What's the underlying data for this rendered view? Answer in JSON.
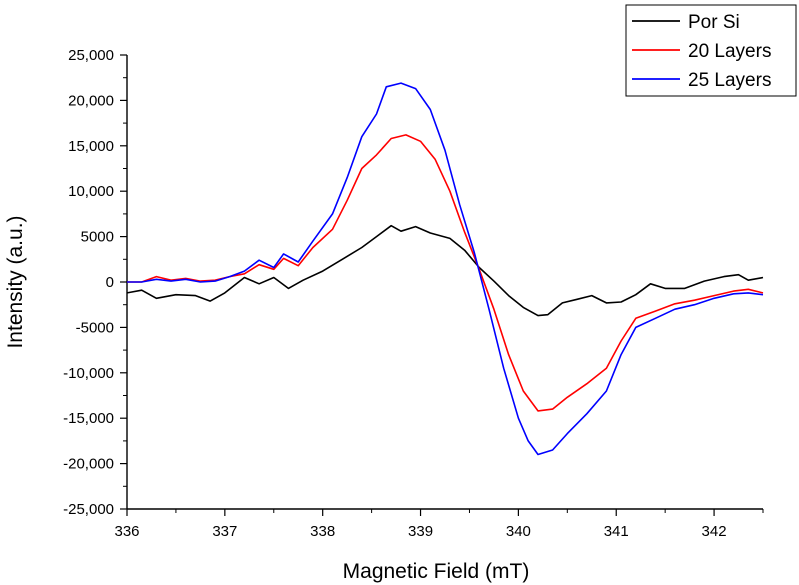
{
  "chart_data": {
    "type": "line",
    "xlabel": "Magnetic Field (mT)",
    "ylabel": "Intensity (a.u.)",
    "xlim": [
      336,
      342.5
    ],
    "ylim": [
      -25000,
      25000
    ],
    "x_ticks": [
      336,
      337,
      338,
      339,
      340,
      341,
      342
    ],
    "x_tick_labels": [
      "336",
      "337",
      "338",
      "339",
      "340",
      "341",
      "342"
    ],
    "y_ticks": [
      25000,
      20000,
      15000,
      10000,
      5000,
      0,
      -5000,
      -10000,
      -15000,
      -20000,
      -25000
    ],
    "y_tick_labels": [
      "25,000",
      "20,000",
      "15,000",
      "10,000",
      "5000",
      "0",
      "-5000",
      "-10,000",
      "-15,000",
      "-20,000",
      "-25,000"
    ],
    "grid": false,
    "legend_position": "top-right",
    "series": [
      {
        "name": "Por Si",
        "color": "#000000",
        "points": [
          [
            336.0,
            -1200
          ],
          [
            336.15,
            -900
          ],
          [
            336.3,
            -1800
          ],
          [
            336.5,
            -1400
          ],
          [
            336.7,
            -1500
          ],
          [
            336.85,
            -2100
          ],
          [
            337.0,
            -1200
          ],
          [
            337.2,
            500
          ],
          [
            337.35,
            -200
          ],
          [
            337.5,
            500
          ],
          [
            337.65,
            -700
          ],
          [
            337.8,
            200
          ],
          [
            338.0,
            1200
          ],
          [
            338.2,
            2500
          ],
          [
            338.4,
            3800
          ],
          [
            338.55,
            5000
          ],
          [
            338.7,
            6200
          ],
          [
            338.8,
            5600
          ],
          [
            338.95,
            6100
          ],
          [
            339.1,
            5400
          ],
          [
            339.3,
            4800
          ],
          [
            339.45,
            3500
          ],
          [
            339.6,
            1600
          ],
          [
            339.75,
            100
          ],
          [
            339.9,
            -1500
          ],
          [
            340.05,
            -2800
          ],
          [
            340.2,
            -3700
          ],
          [
            340.3,
            -3600
          ],
          [
            340.45,
            -2300
          ],
          [
            340.6,
            -1900
          ],
          [
            340.75,
            -1500
          ],
          [
            340.9,
            -2300
          ],
          [
            341.05,
            -2200
          ],
          [
            341.2,
            -1400
          ],
          [
            341.35,
            -200
          ],
          [
            341.5,
            -700
          ],
          [
            341.7,
            -700
          ],
          [
            341.9,
            100
          ],
          [
            342.1,
            600
          ],
          [
            342.25,
            800
          ],
          [
            342.35,
            200
          ],
          [
            342.5,
            500
          ]
        ]
      },
      {
        "name": "20 Layers",
        "color": "#ff0000",
        "points": [
          [
            336.0,
            0
          ],
          [
            336.15,
            0
          ],
          [
            336.3,
            600
          ],
          [
            336.45,
            200
          ],
          [
            336.6,
            400
          ],
          [
            336.75,
            100
          ],
          [
            336.9,
            200
          ],
          [
            337.05,
            600
          ],
          [
            337.2,
            900
          ],
          [
            337.35,
            1900
          ],
          [
            337.5,
            1400
          ],
          [
            337.6,
            2600
          ],
          [
            337.75,
            1800
          ],
          [
            337.9,
            3800
          ],
          [
            338.1,
            5800
          ],
          [
            338.25,
            9000
          ],
          [
            338.4,
            12500
          ],
          [
            338.55,
            14000
          ],
          [
            338.7,
            15800
          ],
          [
            338.85,
            16200
          ],
          [
            339.0,
            15500
          ],
          [
            339.15,
            13500
          ],
          [
            339.3,
            10000
          ],
          [
            339.45,
            5500
          ],
          [
            339.6,
            1400
          ],
          [
            339.75,
            -3000
          ],
          [
            339.9,
            -8000
          ],
          [
            340.05,
            -12000
          ],
          [
            340.2,
            -14200
          ],
          [
            340.35,
            -14000
          ],
          [
            340.5,
            -12700
          ],
          [
            340.7,
            -11200
          ],
          [
            340.9,
            -9500
          ],
          [
            341.05,
            -6500
          ],
          [
            341.2,
            -4000
          ],
          [
            341.4,
            -3200
          ],
          [
            341.6,
            -2400
          ],
          [
            341.8,
            -2000
          ],
          [
            342.0,
            -1500
          ],
          [
            342.2,
            -1000
          ],
          [
            342.35,
            -800
          ],
          [
            342.5,
            -1200
          ]
        ]
      },
      {
        "name": "25 Layers",
        "color": "#0000ff",
        "points": [
          [
            336.0,
            0
          ],
          [
            336.15,
            0
          ],
          [
            336.3,
            300
          ],
          [
            336.45,
            100
          ],
          [
            336.6,
            300
          ],
          [
            336.75,
            0
          ],
          [
            336.9,
            100
          ],
          [
            337.05,
            600
          ],
          [
            337.2,
            1200
          ],
          [
            337.35,
            2400
          ],
          [
            337.5,
            1600
          ],
          [
            337.6,
            3100
          ],
          [
            337.75,
            2200
          ],
          [
            337.9,
            4500
          ],
          [
            338.1,
            7500
          ],
          [
            338.25,
            11500
          ],
          [
            338.4,
            16000
          ],
          [
            338.55,
            18500
          ],
          [
            338.65,
            21500
          ],
          [
            338.8,
            21900
          ],
          [
            338.95,
            21300
          ],
          [
            339.1,
            19000
          ],
          [
            339.25,
            14500
          ],
          [
            339.4,
            8500
          ],
          [
            339.55,
            3200
          ],
          [
            339.7,
            -3000
          ],
          [
            339.85,
            -9500
          ],
          [
            340.0,
            -15000
          ],
          [
            340.1,
            -17500
          ],
          [
            340.2,
            -19000
          ],
          [
            340.35,
            -18500
          ],
          [
            340.5,
            -16700
          ],
          [
            340.7,
            -14500
          ],
          [
            340.9,
            -12000
          ],
          [
            341.05,
            -8000
          ],
          [
            341.2,
            -5000
          ],
          [
            341.4,
            -4000
          ],
          [
            341.6,
            -3000
          ],
          [
            341.8,
            -2500
          ],
          [
            342.0,
            -1800
          ],
          [
            342.2,
            -1300
          ],
          [
            342.35,
            -1200
          ],
          [
            342.5,
            -1400
          ]
        ]
      }
    ]
  }
}
